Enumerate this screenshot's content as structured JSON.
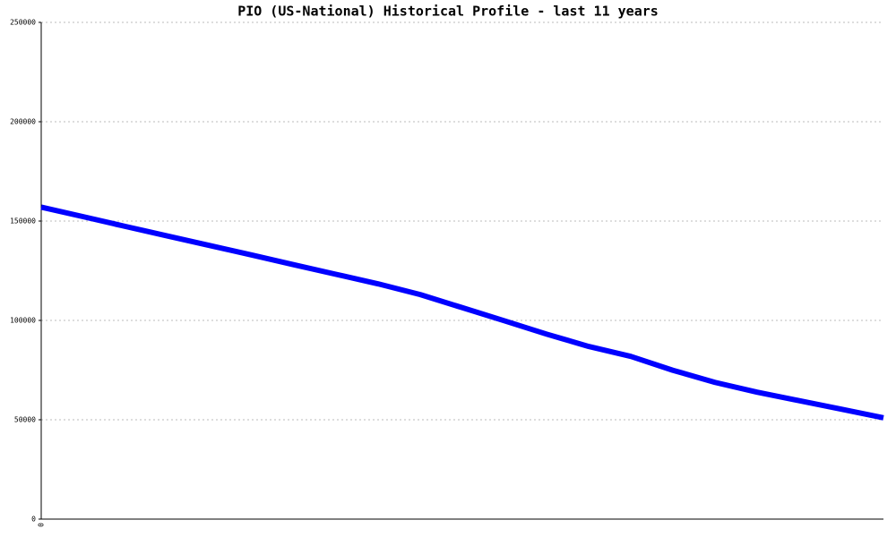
{
  "chart_data": {
    "type": "line",
    "title": "PIO (US-National) Historical Profile - last 11 years",
    "categories": [
      "0",
      null,
      null,
      null,
      null,
      null,
      null,
      null,
      null,
      null,
      null,
      null,
      null,
      null,
      null,
      null,
      null,
      null,
      null,
      null,
      null
    ],
    "series": [
      {
        "name": "PIO",
        "color": "#0000ff",
        "values": [
          157000,
          152200,
          147300,
          142500,
          137700,
          132900,
          128000,
          123200,
          118400,
          113000,
          106400,
          99800,
          93100,
          86900,
          81900,
          74900,
          68800,
          63900,
          59600,
          55300,
          51000
        ]
      }
    ],
    "ylim": [
      0,
      250000
    ],
    "yticks": [
      0,
      50000,
      100000,
      150000,
      200000,
      250000
    ],
    "grid": true
  }
}
